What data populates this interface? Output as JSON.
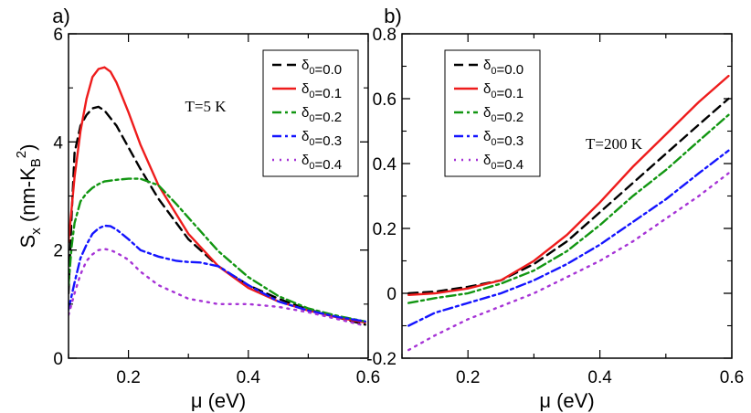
{
  "chart_data": [
    {
      "type": "line",
      "panel_label": "a)",
      "annotation": "T=5 K",
      "xlabel": "μ (eV)",
      "ylabel": "Sₓ (nm-K_B²)",
      "xlim": [
        0.1,
        0.6
      ],
      "ylim": [
        0,
        6
      ],
      "xticks": [
        0.2,
        0.4,
        0.6
      ],
      "xtick_labels": [
        "0.2",
        "0.4",
        "0.6"
      ],
      "yticks": [
        0,
        2,
        4,
        6
      ],
      "ytick_labels": [
        "0",
        "2",
        "4",
        "6"
      ],
      "legend_position": "top-right",
      "series": [
        {
          "name": "δ₀=0.0",
          "color": "#000000",
          "dash": "dash",
          "x": [
            0.1,
            0.105,
            0.11,
            0.12,
            0.13,
            0.14,
            0.15,
            0.16,
            0.18,
            0.2,
            0.22,
            0.25,
            0.3,
            0.35,
            0.4,
            0.45,
            0.5,
            0.55,
            0.595
          ],
          "y": [
            1.2,
            2.6,
            3.8,
            4.3,
            4.5,
            4.62,
            4.65,
            4.58,
            4.3,
            3.9,
            3.5,
            2.95,
            2.2,
            1.7,
            1.35,
            1.1,
            0.9,
            0.75,
            0.62
          ]
        },
        {
          "name": "δ₀=0.1",
          "color": "#ee1c1c",
          "dash": "solid",
          "x": [
            0.1,
            0.105,
            0.11,
            0.12,
            0.13,
            0.14,
            0.15,
            0.16,
            0.17,
            0.18,
            0.2,
            0.22,
            0.25,
            0.3,
            0.35,
            0.4,
            0.45,
            0.5,
            0.55,
            0.595
          ],
          "y": [
            2.15,
            2.75,
            3.35,
            4.2,
            4.8,
            5.2,
            5.35,
            5.38,
            5.3,
            5.1,
            4.55,
            3.95,
            3.2,
            2.3,
            1.7,
            1.3,
            1.05,
            0.88,
            0.75,
            0.66
          ]
        },
        {
          "name": "δ₀=0.2",
          "color": "#129612",
          "dash": "dashdot",
          "x": [
            0.1,
            0.105,
            0.11,
            0.12,
            0.13,
            0.14,
            0.15,
            0.16,
            0.18,
            0.2,
            0.22,
            0.25,
            0.28,
            0.3,
            0.35,
            0.4,
            0.45,
            0.5,
            0.55,
            0.595
          ],
          "y": [
            1.35,
            2.05,
            2.5,
            2.9,
            3.05,
            3.15,
            3.22,
            3.27,
            3.3,
            3.32,
            3.32,
            3.2,
            2.85,
            2.6,
            1.98,
            1.5,
            1.15,
            0.92,
            0.78,
            0.68
          ]
        },
        {
          "name": "δ₀=0.3",
          "color": "#1414ff",
          "dash": "dashdot",
          "x": [
            0.1,
            0.11,
            0.12,
            0.13,
            0.14,
            0.15,
            0.16,
            0.17,
            0.18,
            0.2,
            0.22,
            0.25,
            0.28,
            0.3,
            0.32,
            0.35,
            0.4,
            0.45,
            0.5,
            0.55,
            0.595
          ],
          "y": [
            0.9,
            1.4,
            1.85,
            2.1,
            2.3,
            2.4,
            2.45,
            2.44,
            2.38,
            2.2,
            2.0,
            1.88,
            1.8,
            1.78,
            1.77,
            1.7,
            1.35,
            1.05,
            0.88,
            0.76,
            0.68
          ]
        },
        {
          "name": "δ₀=0.4",
          "color": "#a633d6",
          "dash": "dot",
          "x": [
            0.1,
            0.11,
            0.12,
            0.13,
            0.14,
            0.15,
            0.16,
            0.17,
            0.18,
            0.2,
            0.22,
            0.25,
            0.3,
            0.35,
            0.4,
            0.45,
            0.5,
            0.55,
            0.595
          ],
          "y": [
            0.8,
            1.2,
            1.55,
            1.8,
            1.92,
            2.0,
            2.02,
            2.0,
            1.95,
            1.82,
            1.6,
            1.35,
            1.1,
            1.0,
            1.0,
            0.95,
            0.85,
            0.72,
            0.6
          ]
        }
      ]
    },
    {
      "type": "line",
      "panel_label": "b)",
      "annotation": "T=200 K",
      "xlabel": "μ (eV)",
      "ylabel": "",
      "xlim": [
        0.1,
        0.6
      ],
      "ylim": [
        -0.2,
        0.8
      ],
      "xticks": [
        0.2,
        0.4,
        0.6
      ],
      "xtick_labels": [
        "0.2",
        "0.4",
        "0.6"
      ],
      "yticks": [
        -0.2,
        0,
        0.2,
        0.4,
        0.6,
        0.8
      ],
      "ytick_labels": [
        "-0.2",
        "0",
        "0.2",
        "0.4",
        "0.6",
        "0.8"
      ],
      "legend_position": "top-left",
      "series": [
        {
          "name": "δ₀=0.0",
          "color": "#000000",
          "dash": "dash",
          "x": [
            0.11,
            0.15,
            0.2,
            0.25,
            0.3,
            0.35,
            0.4,
            0.45,
            0.5,
            0.55,
            0.595
          ],
          "y": [
            0.0,
            0.005,
            0.02,
            0.04,
            0.09,
            0.16,
            0.25,
            0.34,
            0.43,
            0.52,
            0.6
          ]
        },
        {
          "name": "δ₀=0.1",
          "color": "#ee1c1c",
          "dash": "solid",
          "x": [
            0.11,
            0.15,
            0.2,
            0.25,
            0.3,
            0.35,
            0.4,
            0.45,
            0.5,
            0.55,
            0.595
          ],
          "y": [
            -0.005,
            0.0,
            0.015,
            0.04,
            0.1,
            0.18,
            0.28,
            0.39,
            0.49,
            0.59,
            0.67
          ]
        },
        {
          "name": "δ₀=0.2",
          "color": "#129612",
          "dash": "dashdot",
          "x": [
            0.11,
            0.15,
            0.2,
            0.25,
            0.3,
            0.35,
            0.4,
            0.45,
            0.5,
            0.55,
            0.595
          ],
          "y": [
            -0.03,
            -0.015,
            0.0,
            0.03,
            0.07,
            0.13,
            0.21,
            0.3,
            0.38,
            0.47,
            0.55
          ]
        },
        {
          "name": "δ₀=0.3",
          "color": "#1414ff",
          "dash": "dashdot",
          "x": [
            0.11,
            0.15,
            0.2,
            0.25,
            0.3,
            0.35,
            0.4,
            0.45,
            0.5,
            0.55,
            0.595
          ],
          "y": [
            -0.1,
            -0.06,
            -0.03,
            0.0,
            0.04,
            0.09,
            0.15,
            0.22,
            0.29,
            0.37,
            0.44
          ]
        },
        {
          "name": "δ₀=0.4",
          "color": "#a633d6",
          "dash": "dot",
          "x": [
            0.11,
            0.15,
            0.2,
            0.25,
            0.3,
            0.35,
            0.4,
            0.45,
            0.5,
            0.55,
            0.595
          ],
          "y": [
            -0.175,
            -0.13,
            -0.08,
            -0.04,
            0.0,
            0.05,
            0.1,
            0.16,
            0.23,
            0.3,
            0.37
          ]
        }
      ]
    }
  ]
}
